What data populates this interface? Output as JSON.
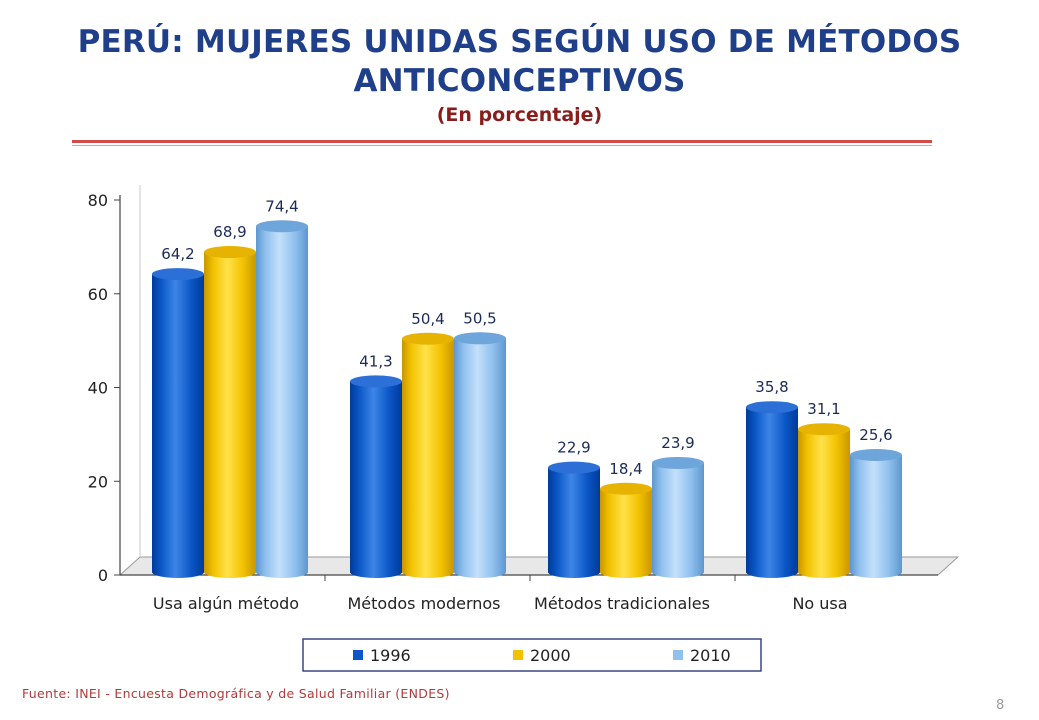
{
  "title_line1": "PERÚ: MUJERES UNIDAS SEGÚN USO DE MÉTODOS",
  "title_line2": "ANTICONCEPTIVOS",
  "subtitle": "(En porcentaje)",
  "source": "Fuente: INEI - Encuesta Demográfica y de Salud Familiar (ENDES)",
  "page_number": "8",
  "colors": {
    "title": "#1f3f8a",
    "subtitle": "#8a1c1c",
    "rule": "#d24b4b",
    "series_1996": "#0b57c7",
    "series_2000": "#f2c200",
    "series_2010": "#8fc0ee"
  },
  "chart_data": {
    "type": "bar",
    "categories": [
      "Usa algún método",
      "Métodos modernos",
      "Métodos tradicionales",
      "No usa"
    ],
    "series": [
      {
        "name": "1996",
        "values": [
          64.2,
          41.3,
          22.9,
          35.8
        ],
        "labels": [
          "64,2",
          "41,3",
          "22,9",
          "35,8"
        ]
      },
      {
        "name": "2000",
        "values": [
          68.9,
          50.4,
          18.4,
          31.1
        ],
        "labels": [
          "68,9",
          "50,4",
          "18,4",
          "31,1"
        ]
      },
      {
        "name": "2010",
        "values": [
          74.4,
          50.5,
          23.9,
          25.6
        ],
        "labels": [
          "74,4",
          "50,5",
          "23,9",
          "25,6"
        ]
      }
    ],
    "yticks": [
      "0",
      "20",
      "40",
      "60",
      "80"
    ],
    "ylim": [
      0,
      80
    ],
    "legend_position": "bottom",
    "grid": false,
    "style": "3d-cylinder"
  }
}
